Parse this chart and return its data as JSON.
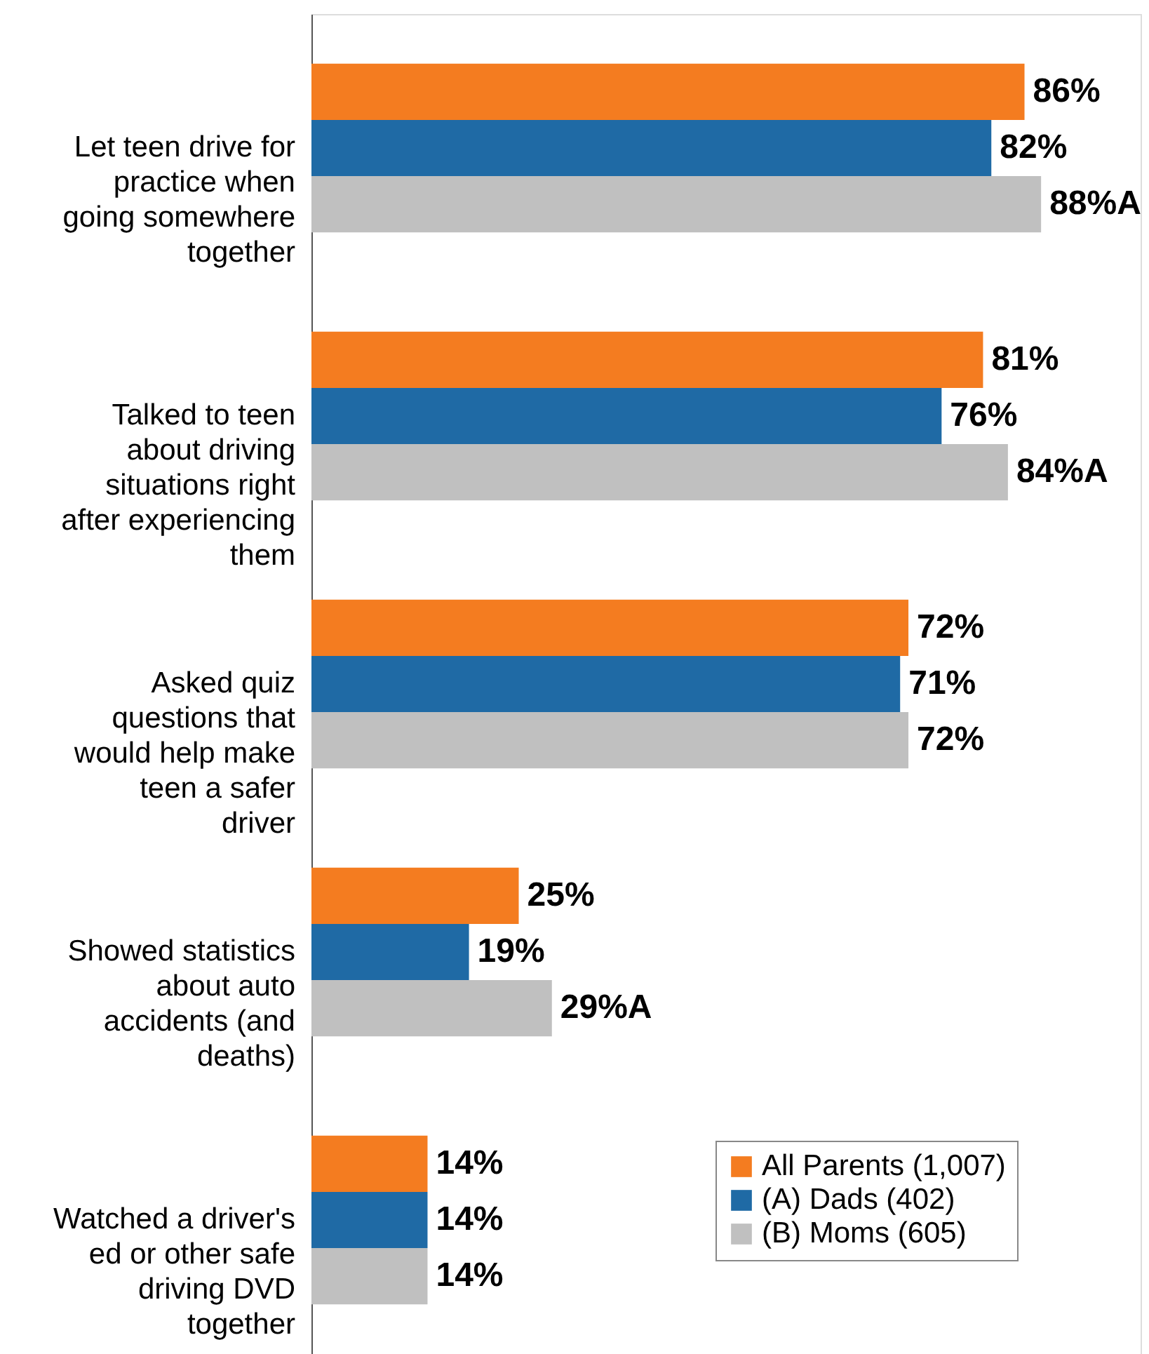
{
  "chart_data": {
    "type": "bar",
    "orientation": "horizontal",
    "categories": [
      "Let teen drive for practice when going somewhere together",
      "Talked to teen about driving situations right after experiencing them",
      "Asked quiz questions that would help make teen a safer driver",
      "Showed statistics about auto accidents (and deaths)",
      "Watched a driver's ed or other safe driving DVD together"
    ],
    "series": [
      {
        "name": "All Parents (1,007)",
        "color": "#f47c20",
        "values": [
          86,
          81,
          72,
          25,
          14
        ],
        "value_labels": [
          "86%",
          "81%",
          "72%",
          "25%",
          "14%"
        ]
      },
      {
        "name": "(A) Dads (402)",
        "color": "#1f6aa5",
        "values": [
          82,
          76,
          71,
          19,
          14
        ],
        "value_labels": [
          "82%",
          "76%",
          "71%",
          "19%",
          "14%"
        ]
      },
      {
        "name": "(B) Moms (605)",
        "color": "#c0c0c0",
        "values": [
          88,
          84,
          72,
          29,
          14
        ],
        "value_labels": [
          "88%A",
          "84%A",
          "72%",
          "29%A",
          "14%"
        ]
      }
    ],
    "xlim": [
      0,
      100
    ],
    "tick_labels": "y",
    "legend": "bottom right"
  }
}
